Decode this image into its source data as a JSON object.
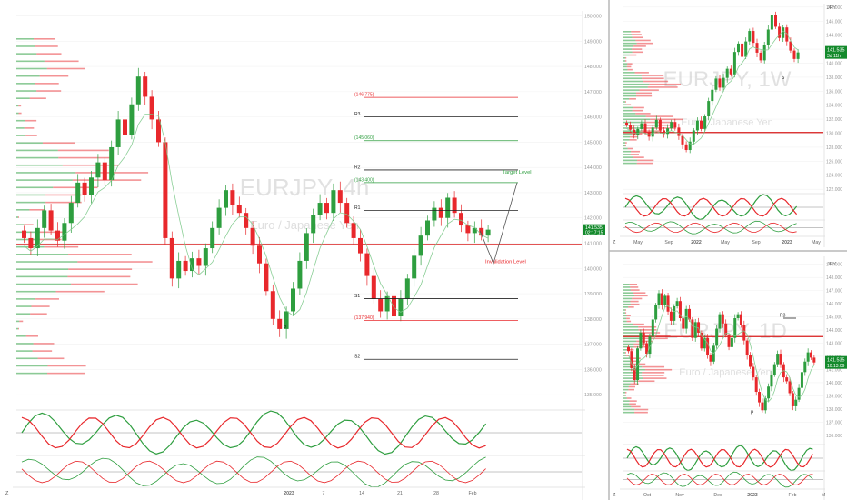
{
  "colors": {
    "up": "#2e9e3f",
    "down": "#e8282c",
    "accent": "#4caf50",
    "red_line": "#d81b1b",
    "grid": "#eeeeee",
    "badge": "#148a2c"
  },
  "chart_data": [
    {
      "type": "candlestick",
      "panel": "main",
      "watermark_symbol": "EURJPY, 4h",
      "watermark_name": "Euro / Japanese Yen",
      "last_price": "141.535",
      "countdown": "02:17:15",
      "ylim": [
        134.5,
        150.2
      ],
      "yticks": [
        "150.000",
        "149.000",
        "148.000",
        "147.000",
        "146.000",
        "145.000",
        "144.000",
        "143.000",
        "142.000",
        "141.000",
        "140.000",
        "139.000",
        "138.000",
        "137.000",
        "136.000",
        "135.000"
      ],
      "xticks": [
        "2023",
        "7",
        "14",
        "21",
        "28",
        "Feb"
      ],
      "annotations": [
        {
          "label": "(146.775)",
          "value": 146.775,
          "color": "#e8282c"
        },
        {
          "label": "R3",
          "value": 146.0,
          "color": "#222222"
        },
        {
          "label": "(145.060)",
          "value": 145.06,
          "color": "#2e9e3f"
        },
        {
          "label": "R2",
          "value": 143.9,
          "color": "#222222"
        },
        {
          "label": "(143.400)",
          "value": 143.4,
          "color": "#2e9e3f"
        },
        {
          "label": "R1",
          "value": 142.3,
          "color": "#222222"
        },
        {
          "label": "S1",
          "value": 138.8,
          "color": "#222222"
        },
        {
          "label": "(137.940)",
          "value": 137.94,
          "color": "#e8282c"
        },
        {
          "label": "S2",
          "value": 136.4,
          "color": "#222222"
        }
      ],
      "text_labels": [
        {
          "label": "Target Level",
          "value": 143.75,
          "color": "#2e9e3f"
        },
        {
          "label": "Invalidation Level",
          "value": 140.2,
          "color": "#e8282c"
        },
        {
          "label": "P",
          "value": 137.6,
          "color": "#222222"
        }
      ],
      "horizontal_lines": [
        {
          "value": 140.95,
          "color": "#d81b1b"
        }
      ],
      "series": [
        {
          "name": "",
          "values": [
            141.2,
            140.8,
            141.6,
            142.3,
            141.5,
            141.1,
            141.8,
            142.6,
            143.4,
            142.9,
            143.6,
            144.2,
            143.5,
            144.8,
            145.9,
            145.3,
            146.5,
            147.6,
            146.8,
            145.9,
            145.0,
            141.2,
            139.6,
            140.3,
            139.9,
            140.4,
            140.1,
            140.8,
            141.6,
            142.4,
            143.1,
            142.5,
            142.2,
            141.6,
            140.9,
            140.2,
            139.1,
            138.0,
            137.6,
            138.3,
            139.2,
            140.3,
            141.4,
            142.1,
            142.6,
            142.2,
            143.1,
            142.6,
            141.8,
            141.2,
            140.6,
            139.7,
            138.8,
            138.3,
            138.9,
            138.1,
            138.8,
            139.6,
            140.5,
            141.3,
            141.9,
            142.4,
            142.0,
            142.8,
            142.2,
            141.7,
            141.4,
            141.6,
            141.3,
            141.535
          ]
        }
      ]
    },
    {
      "type": "candlestick",
      "panel": "top-right",
      "watermark_symbol": "EURJPY, 1W",
      "watermark_name": "Euro / Japanese Yen",
      "unit": "JPY",
      "last_price": "141.535",
      "countdown": "3d 11h",
      "ylim": [
        121.5,
        148.5
      ],
      "yticks": [
        "148.000",
        "146.000",
        "144.000",
        "142.000",
        "140.000",
        "138.000",
        "136.000",
        "134.000",
        "132.000",
        "130.000",
        "128.000",
        "126.000",
        "124.000",
        "122.000"
      ],
      "xticks": [
        "May",
        "Sep",
        "2022",
        "May",
        "Sep",
        "2023",
        "May"
      ],
      "text_labels": [
        {
          "label": "P",
          "value": 137.5,
          "color": "#222222"
        }
      ],
      "horizontal_lines": [
        {
          "value": 130.1,
          "color": "#d81b1b"
        }
      ],
      "series": [
        {
          "name": "",
          "values": [
            131.2,
            130.5,
            129.8,
            130.6,
            131.4,
            130.2,
            129.5,
            130.8,
            131.9,
            130.4,
            129.9,
            130.7,
            131.6,
            130.8,
            129.6,
            128.4,
            127.6,
            128.8,
            130.4,
            131.8,
            130.6,
            132.4,
            134.6,
            136.2,
            137.8,
            136.5,
            137.9,
            139.2,
            138.4,
            141.6,
            142.8,
            140.9,
            143.1,
            144.6,
            142.9,
            141.5,
            140.4,
            142.6,
            144.8,
            146.9,
            145.2,
            143.6,
            145.1,
            143.1,
            141.8,
            140.6,
            141.535
          ]
        }
      ]
    },
    {
      "type": "candlestick",
      "panel": "bottom-right",
      "watermark_symbol": "EURJPY, 1D",
      "watermark_name": "Euro / Japanese Yen",
      "unit": "JPY",
      "last_price": "141.535",
      "countdown": "10:13:09",
      "ylim": [
        135.5,
        149.6
      ],
      "yticks": [
        "149.000",
        "148.000",
        "147.000",
        "146.000",
        "145.000",
        "144.000",
        "143.000",
        "142.000",
        "141.000",
        "140.000",
        "139.000",
        "138.000",
        "137.000",
        "136.000"
      ],
      "xticks": [
        "Oct",
        "Nov",
        "Dec",
        "2023",
        "Feb",
        "M"
      ],
      "annotations": [
        {
          "label": "R3",
          "value": 144.9,
          "color": "#222222"
        }
      ],
      "text_labels": [
        {
          "label": "P",
          "value": 137.6,
          "color": "#222222"
        }
      ],
      "horizontal_lines": [
        {
          "value": 143.5,
          "color": "#d81b1b"
        }
      ],
      "series": [
        {
          "name": "",
          "values": [
            142.4,
            141.1,
            140.2,
            142.6,
            143.8,
            143.0,
            142.2,
            143.5,
            144.8,
            145.9,
            146.8,
            145.9,
            146.6,
            145.4,
            144.7,
            145.8,
            146.2,
            144.9,
            144.1,
            145.6,
            144.8,
            143.4,
            144.6,
            143.8,
            142.6,
            143.4,
            142.1,
            141.6,
            142.8,
            144.1,
            145.2,
            144.5,
            143.6,
            142.7,
            143.4,
            144.9,
            145.2,
            144.4,
            143.2,
            142.1,
            141.2,
            140.4,
            139.3,
            138.5,
            137.9,
            138.8,
            139.7,
            140.6,
            141.4,
            142.2,
            141.4,
            140.4,
            140.1,
            139.2,
            138.2,
            138.7,
            139.6,
            140.8,
            141.6,
            142.3,
            141.9,
            141.535
          ]
        }
      ]
    }
  ],
  "main_panel": {
    "bottom_axis_letter": "Z",
    "last_badge": "141.535",
    "countdown": "02:17:15"
  },
  "tr_panel": {
    "unit": "JPY",
    "bottom_axis_letter": "Z",
    "indicator_tick": "0.000",
    "osc_ticks": [
      "100.00",
      "0.00"
    ]
  },
  "br_panel": {
    "unit": "JPY",
    "bottom_axis_letter": "Z",
    "indicator_tick": "0.000",
    "osc_ticks": [
      "100.00",
      "0.00"
    ]
  }
}
